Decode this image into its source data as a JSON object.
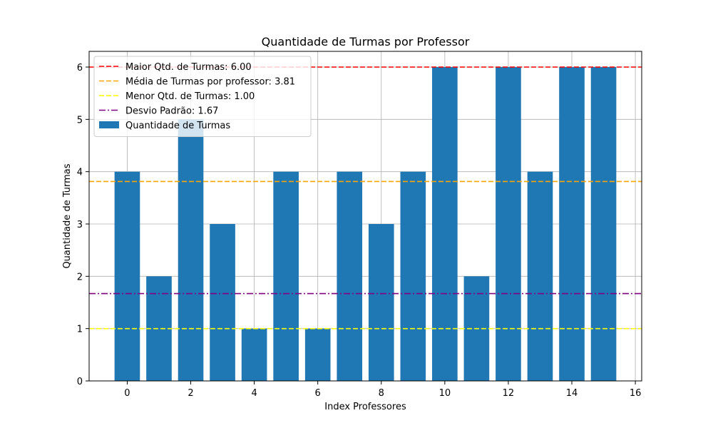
{
  "chart_data": {
    "type": "bar",
    "title": "Quantidade de Turmas por Professor",
    "xlabel": "Index Professores",
    "ylabel": "Quantidade de Turmas",
    "x": [
      0,
      1,
      2,
      3,
      4,
      5,
      6,
      7,
      8,
      9,
      10,
      11,
      12,
      13,
      14,
      15
    ],
    "values": [
      4,
      2,
      5,
      3,
      1,
      4,
      1,
      4,
      3,
      4,
      6,
      2,
      6,
      4,
      6,
      6
    ],
    "xlim": [
      -1.2,
      16.2
    ],
    "ylim": [
      0,
      6.3
    ],
    "xticks": [
      0,
      2,
      4,
      6,
      8,
      10,
      12,
      14,
      16
    ],
    "yticks": [
      0,
      1,
      2,
      3,
      4,
      5,
      6
    ],
    "grid": true,
    "bar_color": "#1f77b4",
    "series_name": "Quantidade de Turmas",
    "reference_lines": [
      {
        "name": "Maior Qtd. de Turmas: 6.00",
        "value": 6.0,
        "color": "#ff0000",
        "style": "dashed"
      },
      {
        "name": "Média de Turmas por professor: 3.81",
        "value": 3.8125,
        "color": "#ffa500",
        "style": "dashed"
      },
      {
        "name": "Menor Qtd. de Turmas: 1.00",
        "value": 1.0,
        "color": "#ffff00",
        "style": "dashed"
      },
      {
        "name": "Desvio Padrão: 1.67",
        "value": 1.67,
        "color": "#800080",
        "style": "dashdot"
      }
    ],
    "legend_position": "top-left"
  }
}
